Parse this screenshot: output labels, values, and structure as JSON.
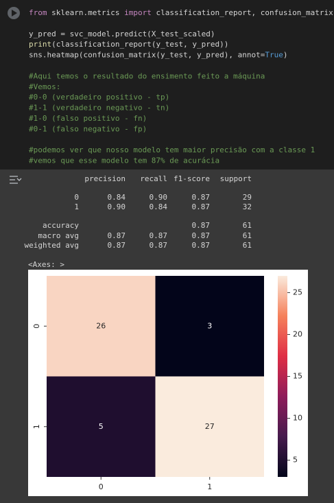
{
  "code": {
    "lines": [
      [
        {
          "text": "from",
          "color": "#c586c0"
        },
        {
          "text": " sklearn.metrics ",
          "color": "#d4d4d4"
        },
        {
          "text": "import",
          "color": "#c586c0"
        },
        {
          "text": " classification_report, confusion_matrix",
          "color": "#d4d4d4"
        }
      ],
      [],
      [
        {
          "text": "y_pred = svc_model.predict(X_test_scaled)",
          "color": "#d4d4d4"
        }
      ],
      [
        {
          "text": "print",
          "color": "#dcdcaa"
        },
        {
          "text": "(classification_report(y_test, y_pred))",
          "color": "#d4d4d4"
        }
      ],
      [
        {
          "text": "sns.heatmap(confusion_matrix(y_test, y_pred), annot=",
          "color": "#d4d4d4"
        },
        {
          "text": "True",
          "color": "#569cd6"
        },
        {
          "text": ")",
          "color": "#d4d4d4"
        }
      ],
      [],
      [
        {
          "text": "#Aqui temos o resultado do ensimento feito a máquina",
          "color": "#6a9955"
        }
      ],
      [
        {
          "text": "#Vemos:",
          "color": "#6a9955"
        }
      ],
      [
        {
          "text": "#0-0 (verdadeiro positivo - tp)",
          "color": "#6a9955"
        }
      ],
      [
        {
          "text": "#1-1 (verdadeiro negativo - tn)",
          "color": "#6a9955"
        }
      ],
      [
        {
          "text": "#1-0 (falso positivo - fn)",
          "color": "#6a9955"
        }
      ],
      [
        {
          "text": "#0-1 (falso negativo - fp)",
          "color": "#6a9955"
        }
      ],
      [],
      [
        {
          "text": "#podemos ver que nosso modelo tem maior precisão com a classe 1",
          "color": "#6a9955"
        }
      ],
      [
        {
          "text": "#vemos que esse modelo tem 87% de acurácia",
          "color": "#6a9955"
        }
      ]
    ]
  },
  "report": {
    "header": [
      "precision",
      "recall",
      "f1-score",
      "support"
    ],
    "rows": [
      [
        "0",
        "0.84",
        "0.90",
        "0.87",
        "29"
      ],
      [
        "1",
        "0.90",
        "0.84",
        "0.87",
        "32"
      ],
      [
        "accuracy",
        null,
        null,
        "0.87",
        "61"
      ],
      [
        "macro avg",
        "0.87",
        "0.87",
        "0.87",
        "61"
      ],
      [
        "weighted avg",
        "0.87",
        "0.87",
        "0.87",
        "61"
      ]
    ]
  },
  "axes_repr": "<Axes: >",
  "chart_data": {
    "type": "heatmap",
    "x": [
      "0",
      "1"
    ],
    "y": [
      "0",
      "1"
    ],
    "values": [
      [
        26,
        3
      ],
      [
        5,
        27
      ]
    ],
    "colormap": "rocket",
    "clim": [
      3,
      27
    ],
    "cticks": [
      5,
      10,
      15,
      20,
      25
    ]
  }
}
